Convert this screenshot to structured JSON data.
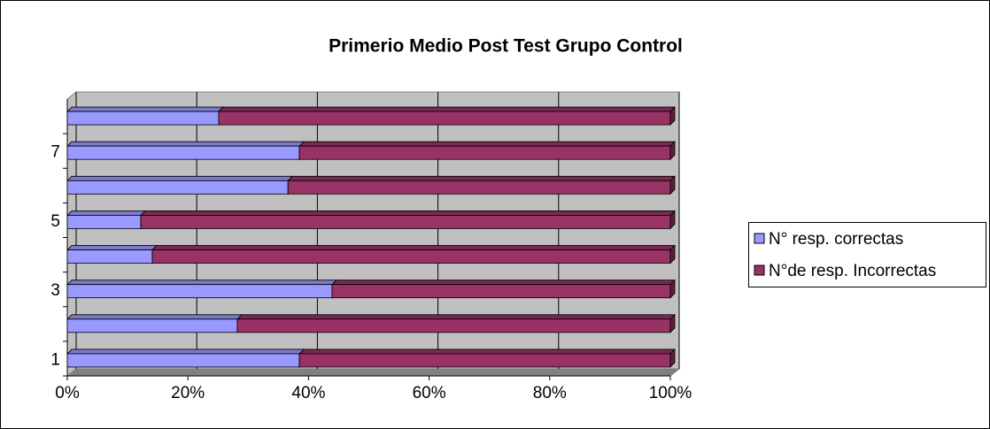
{
  "chart_data": {
    "type": "bar",
    "orientation": "horizontal",
    "stacked": "percent",
    "title": "Primerio Medio Post Test Grupo Control",
    "categories": [
      1,
      null,
      3,
      null,
      5,
      null,
      7,
      null
    ],
    "series": [
      {
        "name": "N° resp. correctas",
        "color": "#9999ff",
        "values": [
          38.5,
          28.2,
          43.9,
          14.1,
          12.2,
          36.6,
          38.5,
          25.1
        ]
      },
      {
        "name": "N°de resp. Incorrectas",
        "color": "#993366",
        "values": [
          61.5,
          71.8,
          56.1,
          85.9,
          87.8,
          63.4,
          61.5,
          74.9
        ]
      }
    ],
    "xlim": [
      0,
      100
    ],
    "xticks": [
      {
        "value": 0,
        "label": "0%"
      },
      {
        "value": 20,
        "label": "20%"
      },
      {
        "value": 40,
        "label": "40%"
      },
      {
        "value": 60,
        "label": "60%"
      },
      {
        "value": 80,
        "label": "80%"
      },
      {
        "value": 100,
        "label": "100%"
      }
    ],
    "grid": true,
    "legend": "right"
  }
}
